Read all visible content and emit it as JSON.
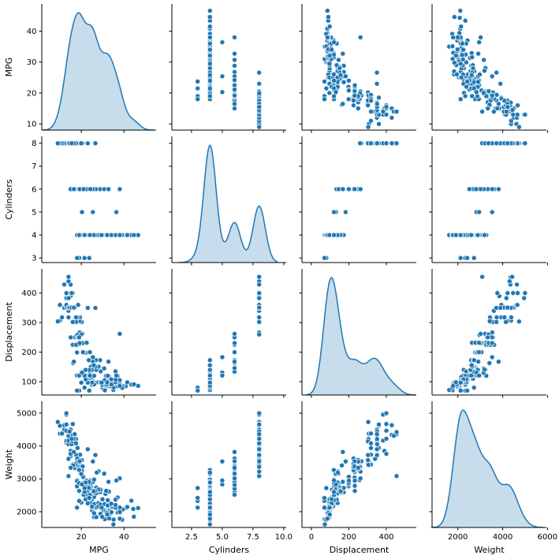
{
  "figure": {
    "kind": "seaborn-pairplot",
    "background_color": "#ffffff",
    "marker_color": "#1f77b4",
    "marker_edge_color": "#ffffff",
    "kde_line_color": "#1f77b4",
    "kde_fill_color": "#1f77b4",
    "kde_fill_opacity": 0.25,
    "spine_color": "#000000",
    "text_color": "#000000"
  },
  "chart_data": {
    "type": "scatter",
    "subtype": "scatter-matrix-pairplot",
    "variables": [
      "MPG",
      "Cylinders",
      "Displacement",
      "Weight"
    ],
    "diagonal": "kde",
    "grid": "off",
    "legend": "none",
    "axes": {
      "columns": [
        {
          "var": "MPG",
          "range": [
            1.5,
            55
          ],
          "ticks": [
            20,
            40
          ],
          "tick_labels": [
            "20",
            "40"
          ]
        },
        {
          "var": "Cylinders",
          "range": [
            0.9,
            10.2
          ],
          "ticks": [
            2.5,
            5.0,
            7.5,
            10.0
          ],
          "tick_labels": [
            "2.5",
            "5.0",
            "7.5",
            "10.0"
          ]
        },
        {
          "var": "Displacement",
          "range": [
            -50,
            560
          ],
          "ticks": [
            0,
            200,
            400
          ],
          "tick_labels": [
            "0",
            "200",
            "400"
          ]
        },
        {
          "var": "Weight",
          "range": [
            850,
            5950
          ],
          "ticks": [
            2000,
            4000,
            6000
          ],
          "tick_labels": [
            "2000",
            "4000",
            "6000"
          ]
        }
      ],
      "rows": [
        {
          "var": "MPG",
          "range": [
            8,
            48.8
          ],
          "ticks": [
            10,
            20,
            30,
            40
          ],
          "tick_labels": [
            "10",
            "20",
            "30",
            "40"
          ]
        },
        {
          "var": "Cylinders",
          "range": [
            2.8,
            8.3
          ],
          "ticks": [
            3,
            4,
            5,
            6,
            7,
            8
          ],
          "tick_labels": [
            "3",
            "4",
            "5",
            "6",
            "7",
            "8"
          ]
        },
        {
          "var": "Displacement",
          "range": [
            55,
            482
          ],
          "ticks": [
            100,
            200,
            300,
            400
          ],
          "tick_labels": [
            "100",
            "200",
            "300",
            "400"
          ]
        },
        {
          "var": "Weight",
          "range": [
            1520,
            5360
          ],
          "ticks": [
            2000,
            3000,
            4000,
            5000
          ],
          "tick_labels": [
            "2000",
            "3000",
            "4000",
            "5000"
          ]
        }
      ]
    },
    "kde_bandwidths": {
      "MPG": 2.4,
      "Cylinders": 0.5,
      "Displacement": 33,
      "Weight": 270
    },
    "points": [
      [
        18,
        8,
        307,
        3504
      ],
      [
        15,
        8,
        350,
        3693
      ],
      [
        18,
        8,
        318,
        3436
      ],
      [
        16,
        8,
        304,
        3433
      ],
      [
        17,
        8,
        302,
        3449
      ],
      [
        15,
        8,
        429,
        4341
      ],
      [
        14,
        8,
        454,
        4354
      ],
      [
        14,
        8,
        440,
        4312
      ],
      [
        14,
        8,
        455,
        4425
      ],
      [
        15,
        8,
        390,
        3850
      ],
      [
        14,
        8,
        340,
        3609
      ],
      [
        15,
        8,
        400,
        3761
      ],
      [
        14,
        8,
        455,
        3086
      ],
      [
        10,
        8,
        360,
        4615
      ],
      [
        10,
        8,
        307,
        4376
      ],
      [
        11,
        8,
        318,
        4382
      ],
      [
        9,
        8,
        304,
        4732
      ],
      [
        13,
        8,
        350,
        4100
      ],
      [
        12,
        8,
        350,
        4502
      ],
      [
        13,
        8,
        400,
        4464
      ],
      [
        13,
        8,
        351,
        4154
      ],
      [
        14,
        8,
        318,
        4096
      ],
      [
        13,
        8,
        383,
        4955
      ],
      [
        12,
        8,
        429,
        4633
      ],
      [
        13,
        8,
        400,
        4997
      ],
      [
        16,
        8,
        400,
        4668
      ],
      [
        13,
        8,
        360,
        4654
      ],
      [
        15,
        8,
        350,
        4499
      ],
      [
        16,
        8,
        351,
        4335
      ],
      [
        14,
        8,
        351,
        4054
      ],
      [
        14,
        8,
        383,
        4166
      ],
      [
        17.5,
        8,
        305,
        4215
      ],
      [
        14.5,
        8,
        351,
        4440
      ],
      [
        20.2,
        8,
        302,
        3570
      ],
      [
        19.2,
        8,
        305,
        3425
      ],
      [
        20.5,
        8,
        262,
        3221
      ],
      [
        19.4,
        8,
        318,
        3735
      ],
      [
        18.5,
        8,
        360,
        3940
      ],
      [
        19.2,
        8,
        267,
        3535
      ],
      [
        18.2,
        8,
        318,
        3940
      ],
      [
        15.5,
        8,
        351,
        4054
      ],
      [
        16.9,
        8,
        350,
        4360
      ],
      [
        26.6,
        8,
        350,
        3725
      ],
      [
        23,
        8,
        350,
        3900
      ],
      [
        17.6,
        8,
        302,
        3725
      ],
      [
        19.9,
        8,
        260,
        3365
      ],
      [
        16,
        8,
        302,
        4141
      ],
      [
        17.5,
        8,
        318,
        4080
      ],
      [
        16.5,
        8,
        351,
        4215
      ],
      [
        15.5,
        8,
        400,
        4220
      ],
      [
        18,
        6,
        199,
        2774
      ],
      [
        22,
        6,
        198,
        2833
      ],
      [
        21,
        6,
        200,
        2875
      ],
      [
        19,
        6,
        232,
        2634
      ],
      [
        16,
        6,
        225,
        3439
      ],
      [
        17,
        6,
        250,
        3329
      ],
      [
        21,
        6,
        231,
        3039
      ],
      [
        18,
        6,
        250,
        3574
      ],
      [
        18.1,
        6,
        258,
        2962
      ],
      [
        20.5,
        6,
        231,
        3245
      ],
      [
        19.4,
        6,
        232,
        3210
      ],
      [
        20.2,
        6,
        232,
        3265
      ],
      [
        22,
        6,
        232,
        2789
      ],
      [
        19,
        6,
        225,
        3264
      ],
      [
        28.8,
        6,
        173,
        2595
      ],
      [
        26.8,
        6,
        173,
        2700
      ],
      [
        18.6,
        6,
        225,
        3360
      ],
      [
        18.1,
        6,
        225,
        3620
      ],
      [
        17.6,
        6,
        225,
        3465
      ],
      [
        16.2,
        6,
        163,
        3410
      ],
      [
        20.6,
        6,
        231,
        3380
      ],
      [
        20.8,
        6,
        200,
        3060
      ],
      [
        18.6,
        6,
        250,
        3525
      ],
      [
        19,
        6,
        250,
        3302
      ],
      [
        15,
        6,
        250,
        3336
      ],
      [
        24,
        6,
        200,
        2945
      ],
      [
        22.5,
        6,
        232,
        2945
      ],
      [
        25.4,
        6,
        168,
        2900
      ],
      [
        19.2,
        6,
        231,
        3535
      ],
      [
        30.7,
        6,
        145,
        3160
      ],
      [
        32.7,
        6,
        168,
        2910
      ],
      [
        38,
        6,
        262,
        3015
      ],
      [
        21.1,
        6,
        134,
        2515
      ],
      [
        24.2,
        6,
        146,
        2815
      ],
      [
        16.5,
        6,
        168,
        3820
      ],
      [
        24,
        4,
        113,
        2372
      ],
      [
        27,
        4,
        97,
        2130
      ],
      [
        26,
        4,
        97,
        1835
      ],
      [
        25,
        4,
        110,
        2672
      ],
      [
        24,
        4,
        107,
        2430
      ],
      [
        25,
        4,
        104,
        2375
      ],
      [
        26,
        4,
        121,
        2234
      ],
      [
        27,
        4,
        97,
        1834
      ],
      [
        28,
        4,
        140,
        2264
      ],
      [
        25,
        4,
        90,
        2108
      ],
      [
        25,
        4,
        98,
        2046
      ],
      [
        26,
        4,
        122,
        2451
      ],
      [
        30,
        4,
        79,
        2074
      ],
      [
        30,
        4,
        88,
        2065
      ],
      [
        31,
        4,
        71,
        1773
      ],
      [
        35,
        4,
        72,
        1613
      ],
      [
        26,
        4,
        91,
        1955
      ],
      [
        24,
        4,
        113,
        2278
      ],
      [
        25,
        4,
        97.5,
        2126
      ],
      [
        29,
        4,
        97,
        1937
      ],
      [
        23,
        4,
        120,
        2506
      ],
      [
        20,
        4,
        97,
        2279
      ],
      [
        28,
        4,
        98,
        2164
      ],
      [
        34.1,
        4,
        86,
        1975
      ],
      [
        31.8,
        4,
        85,
        2020
      ],
      [
        37.3,
        4,
        91,
        2130
      ],
      [
        28.4,
        4,
        151,
        2670
      ],
      [
        29.8,
        4,
        89,
        1845
      ],
      [
        33.5,
        4,
        98,
        2075
      ],
      [
        34.2,
        4,
        105,
        2200
      ],
      [
        31.3,
        4,
        120,
        2542
      ],
      [
        37,
        4,
        119,
        2434
      ],
      [
        32.2,
        4,
        108,
        2265
      ],
      [
        46.6,
        4,
        86,
        2110
      ],
      [
        40.8,
        4,
        85,
        2110
      ],
      [
        44.3,
        4,
        90,
        2085
      ],
      [
        43.4,
        4,
        90,
        2335
      ],
      [
        44.6,
        4,
        91,
        1850
      ],
      [
        33.8,
        4,
        97,
        2145
      ],
      [
        32.4,
        4,
        107,
        2290
      ],
      [
        36,
        4,
        135,
        2370
      ],
      [
        32.9,
        4,
        119,
        2615
      ],
      [
        31.6,
        4,
        120,
        2635
      ],
      [
        28.1,
        4,
        141,
        3230
      ],
      [
        30.5,
        4,
        98,
        2051
      ],
      [
        33.5,
        4,
        85,
        1945
      ],
      [
        29,
        4,
        98,
        2219
      ],
      [
        24.5,
        4,
        151,
        2740
      ],
      [
        29,
        4,
        135,
        2671
      ],
      [
        23,
        4,
        140,
        2639
      ],
      [
        23.9,
        4,
        119,
        2405
      ],
      [
        34.3,
        4,
        97,
        2188
      ],
      [
        29.9,
        4,
        98,
        2380
      ],
      [
        30.9,
        4,
        105,
        2230
      ],
      [
        37.2,
        4,
        86,
        2019
      ],
      [
        33,
        4,
        105,
        2190
      ],
      [
        34.5,
        4,
        105,
        2150
      ],
      [
        33.7,
        4,
        107,
        2210
      ],
      [
        32.4,
        4,
        120,
        2350
      ],
      [
        18,
        4,
        121,
        2933
      ],
      [
        19,
        4,
        120,
        3270
      ],
      [
        20,
        4,
        130,
        3150
      ],
      [
        21,
        4,
        122,
        2800
      ],
      [
        19,
        4,
        121,
        2868
      ],
      [
        25,
        4,
        116,
        2158
      ],
      [
        26,
        4,
        120,
        2979
      ],
      [
        23,
        4,
        97,
        2254
      ],
      [
        22,
        4,
        108,
        2379
      ],
      [
        24,
        4,
        134,
        2702
      ],
      [
        27.2,
        4,
        141,
        3190
      ],
      [
        23.5,
        4,
        173,
        2725
      ],
      [
        27,
        4,
        151,
        2735
      ],
      [
        25.1,
        4,
        140,
        2572
      ],
      [
        31.5,
        4,
        89,
        1990
      ],
      [
        33,
        4,
        91,
        1795
      ],
      [
        38.1,
        4,
        89,
        1968
      ],
      [
        39.4,
        4,
        85,
        2070
      ],
      [
        35.1,
        4,
        81,
        1760
      ],
      [
        39.1,
        4,
        79,
        1755
      ],
      [
        32.3,
        4,
        97,
        2190
      ],
      [
        37,
        4,
        85,
        1975
      ],
      [
        37.7,
        4,
        89,
        2050
      ],
      [
        34.1,
        4,
        91,
        1985
      ],
      [
        38,
        4,
        105,
        2125
      ],
      [
        36,
        4,
        98,
        2125
      ],
      [
        36,
        4,
        107,
        2205
      ],
      [
        34,
        4,
        108,
        2245
      ],
      [
        38,
        4,
        91,
        1995
      ],
      [
        32,
        4,
        91,
        1965
      ],
      [
        38,
        4,
        86,
        1790
      ],
      [
        25,
        4,
        140,
        2542
      ],
      [
        26,
        4,
        156,
        2585
      ],
      [
        27,
        4,
        140,
        2565
      ],
      [
        28,
        4,
        151,
        2678
      ],
      [
        26.6,
        4,
        151,
        2635
      ],
      [
        25.8,
        4,
        156,
        2620
      ],
      [
        23.6,
        4,
        140,
        2905
      ],
      [
        32.1,
        4,
        98,
        1915
      ],
      [
        41.5,
        4,
        98,
        2144
      ],
      [
        29.5,
        4,
        97,
        2126
      ],
      [
        22,
        4,
        140,
        2890
      ],
      [
        24,
        4,
        121,
        2511
      ],
      [
        21.5,
        4,
        121,
        2600
      ],
      [
        19,
        3,
        70,
        2330
      ],
      [
        18,
        3,
        70,
        2124
      ],
      [
        21.5,
        3,
        80,
        2720
      ],
      [
        23.7,
        3,
        70,
        2420
      ],
      [
        20.3,
        5,
        131,
        2830
      ],
      [
        25.4,
        5,
        183,
        3530
      ],
      [
        36.4,
        5,
        121,
        2950
      ]
    ]
  }
}
